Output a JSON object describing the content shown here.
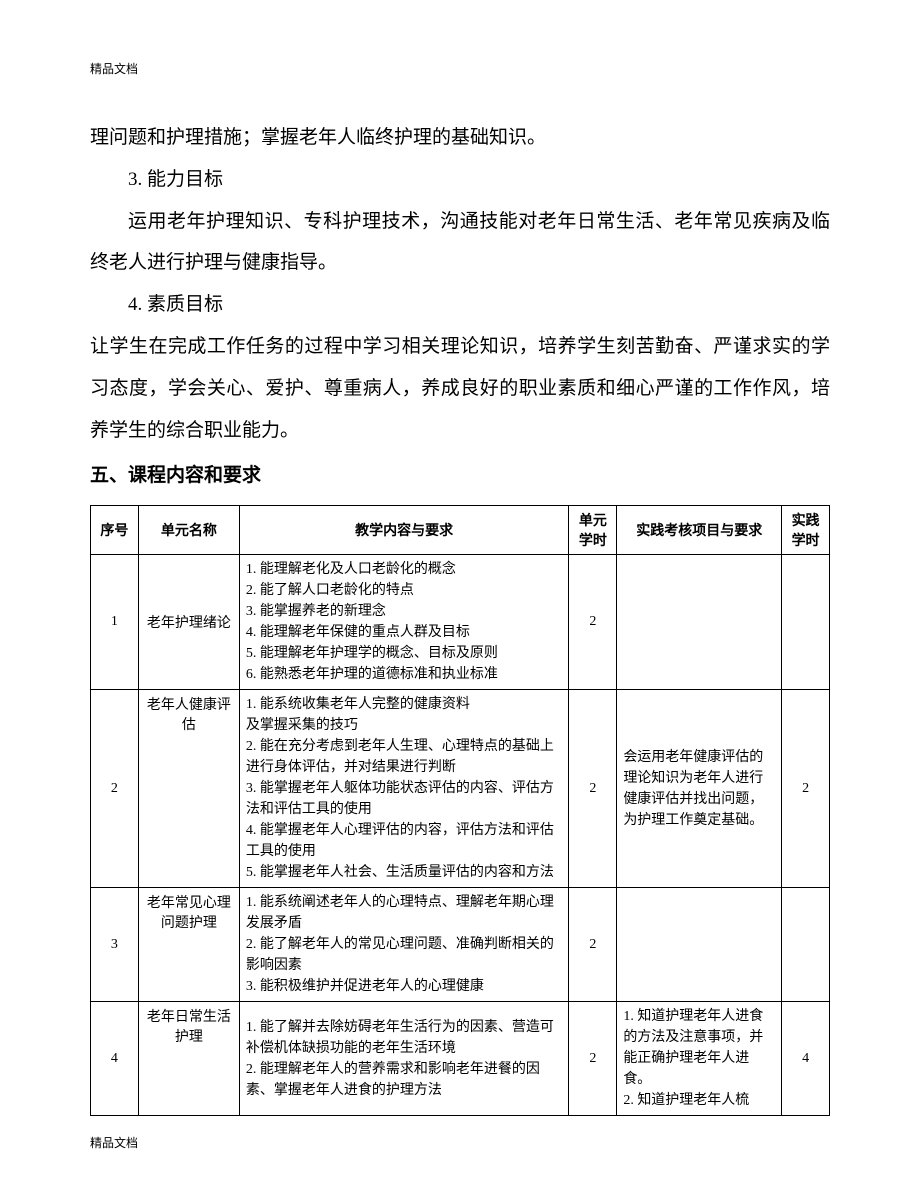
{
  "header_mark": "精品文档",
  "footer_mark": "精品文档",
  "paragraphs": {
    "p1": "理问题和护理措施；掌握老年人临终护理的基础知识。",
    "p2_heading": "3. 能力目标",
    "p3": "运用老年护理知识、专科护理技术，沟通技能对老年日常生活、老年常见疾病及临终老人进行护理与健康指导。",
    "p4_heading": "4. 素质目标",
    "p5": "让学生在完成工作任务的过程中学习相关理论知识，培养学生刻苦勤奋、严谨求实的学习态度，学会关心、爱护、尊重病人，养成良好的职业素质和细心严谨的工作作风，培养学生的综合职业能力。"
  },
  "section_heading": "五、课程内容和要求",
  "table": {
    "headers": {
      "seq": "序号",
      "name": "单元名称",
      "content": "教学内容与要求",
      "hours1": "单元学时",
      "practice": "实践考核项目与要求",
      "hours2": "实践学时"
    },
    "rows": [
      {
        "seq": "1",
        "name": "老年护理绪论",
        "content": "1. 能理解老化及人口老龄化的概念\n2. 能了解人口老龄化的特点\n3. 能掌握养老的新理念\n4. 能理解老年保健的重点人群及目标\n5. 能理解老年护理学的概念、目标及原则\n6. 能熟悉老年护理的道德标准和执业标准",
        "hours1": "2",
        "practice": "",
        "hours2": ""
      },
      {
        "seq": "2",
        "name": "老年人健康评估",
        "content": "1. 能系统收集老年人完整的健康资料\n及掌握采集的技巧\n2. 能在充分考虑到老年人生理、心理特点的基础上进行身体评估，并对结果进行判断\n3. 能掌握老年人躯体功能状态评估的内容、评估方法和评估工具的使用\n4. 能掌握老年人心理评估的内容，评估方法和评估工具的使用\n5. 能掌握老年人社会、生活质量评估的内容和方法",
        "hours1": "2",
        "practice": "会运用老年健康评估的理论知识为老年人进行健康评估并找出问题，为护理工作奠定基础。",
        "hours2": "2"
      },
      {
        "seq": "3",
        "name": "老年常见心理问题护理",
        "content": "1. 能系统阐述老年人的心理特点、理解老年期心理发展矛盾\n2. 能了解老年人的常见心理问题、准确判断相关的影响因素\n3. 能积极维护并促进老年人的心理健康",
        "hours1": "2",
        "practice": "",
        "hours2": ""
      },
      {
        "seq": "4",
        "name": "老年日常生活护理",
        "content": "1. 能了解并去除妨碍老年生活行为的因素、营造可补偿机体缺损功能的老年生活环境\n2. 能理解老年人的营养需求和影响老年进餐的因素、掌握老年人进食的护理方法",
        "hours1": "2",
        "practice": "1. 知道护理老年人进食的方法及注意事项，并能正确护理老年人进食。\n2. 知道护理老年人梳",
        "hours2": "4"
      }
    ]
  },
  "colors": {
    "text": "#000000",
    "background": "#ffffff",
    "border": "#000000"
  }
}
